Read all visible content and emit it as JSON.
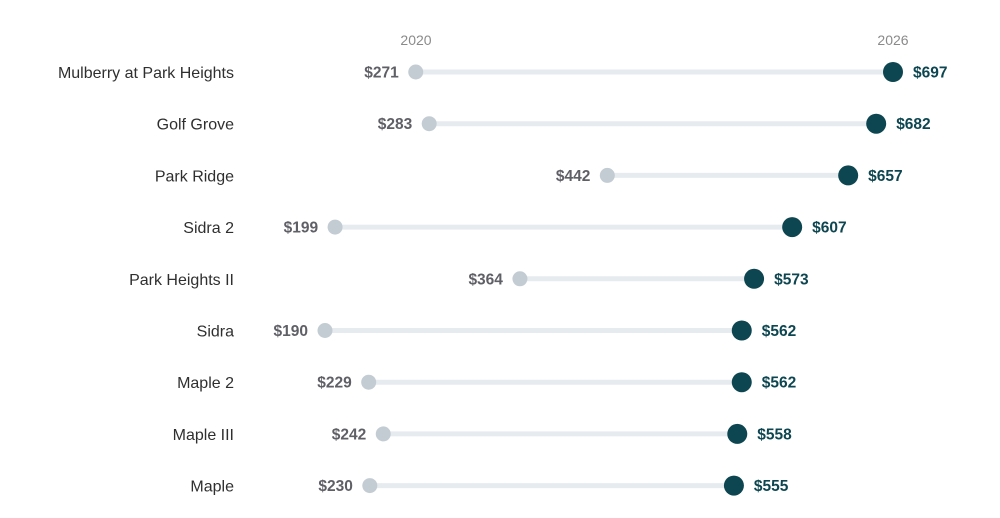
{
  "chart_data": {
    "type": "dumbbell",
    "series": [
      {
        "name": "2020",
        "values": [
          271,
          283,
          442,
          199,
          364,
          190,
          229,
          242,
          230
        ]
      },
      {
        "name": "2026",
        "values": [
          697,
          682,
          657,
          607,
          573,
          562,
          562,
          558,
          555
        ]
      }
    ],
    "categories": [
      "Mulberry at Park Heights",
      "Golf Grove",
      "Park Ridge",
      "Sidra 2",
      "Park Heights II",
      "Sidra",
      "Maple 2",
      "Maple III",
      "Maple"
    ],
    "value_labels": {
      "2020": [
        "$271",
        "$283",
        "$442",
        "$199",
        "$364",
        "$190",
        "$229",
        "$242",
        "$230"
      ],
      "2026": [
        "$697",
        "$682",
        "$657",
        "$607",
        "$573",
        "$562",
        "$562",
        "$558",
        "$555"
      ]
    },
    "colors": {
      "start": "#c3ccd3",
      "end": "#0d4650",
      "track": "#e6ebef",
      "start_text": "#5f5f66",
      "end_text": "#0d4650"
    },
    "grid": false,
    "legend": "none"
  }
}
